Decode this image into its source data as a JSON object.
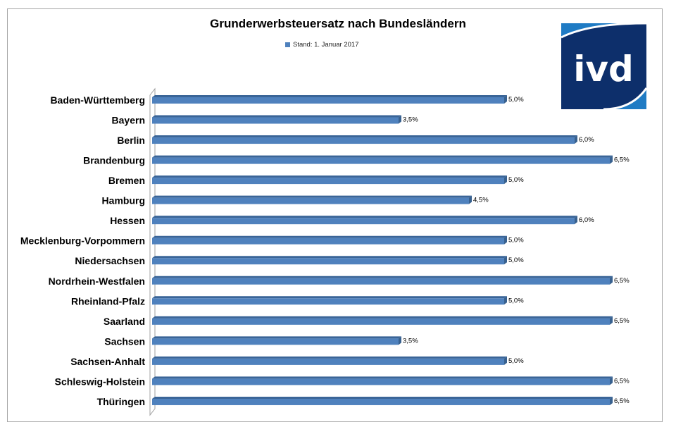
{
  "logo_text": "ivd",
  "chart_data": {
    "type": "bar",
    "orientation": "horizontal",
    "title": "Grunderwerbsteuersatz nach Bundesländern",
    "legend": [
      "Stand: 1. Januar 2017"
    ],
    "legend_position": "top",
    "categories": [
      "Baden-Württemberg",
      "Bayern",
      "Berlin",
      "Brandenburg",
      "Bremen",
      "Hamburg",
      "Hessen",
      "Mecklenburg-Vorpommern",
      "Niedersachsen",
      "Nordrhein-Westfalen",
      "Rheinland-Pfalz",
      "Saarland",
      "Sachsen",
      "Sachsen-Anhalt",
      "Schleswig-Holstein",
      "Thüringen"
    ],
    "series": [
      {
        "name": "Stand: 1. Januar 2017",
        "values": [
          5.0,
          3.5,
          6.0,
          6.5,
          5.0,
          4.5,
          6.0,
          5.0,
          5.0,
          6.5,
          5.0,
          6.5,
          3.5,
          5.0,
          6.5,
          6.5
        ]
      }
    ],
    "data_labels": [
      "5,0%",
      "3,5%",
      "6,0%",
      "6,5%",
      "5,0%",
      "4,5%",
      "6,0%",
      "5,0%",
      "5,0%",
      "6,5%",
      "5,0%",
      "6,5%",
      "3,5%",
      "5,0%",
      "6,5%",
      "6,5%"
    ],
    "xlim": [
      0,
      7
    ],
    "grid": false,
    "color": "#4f81bd"
  }
}
